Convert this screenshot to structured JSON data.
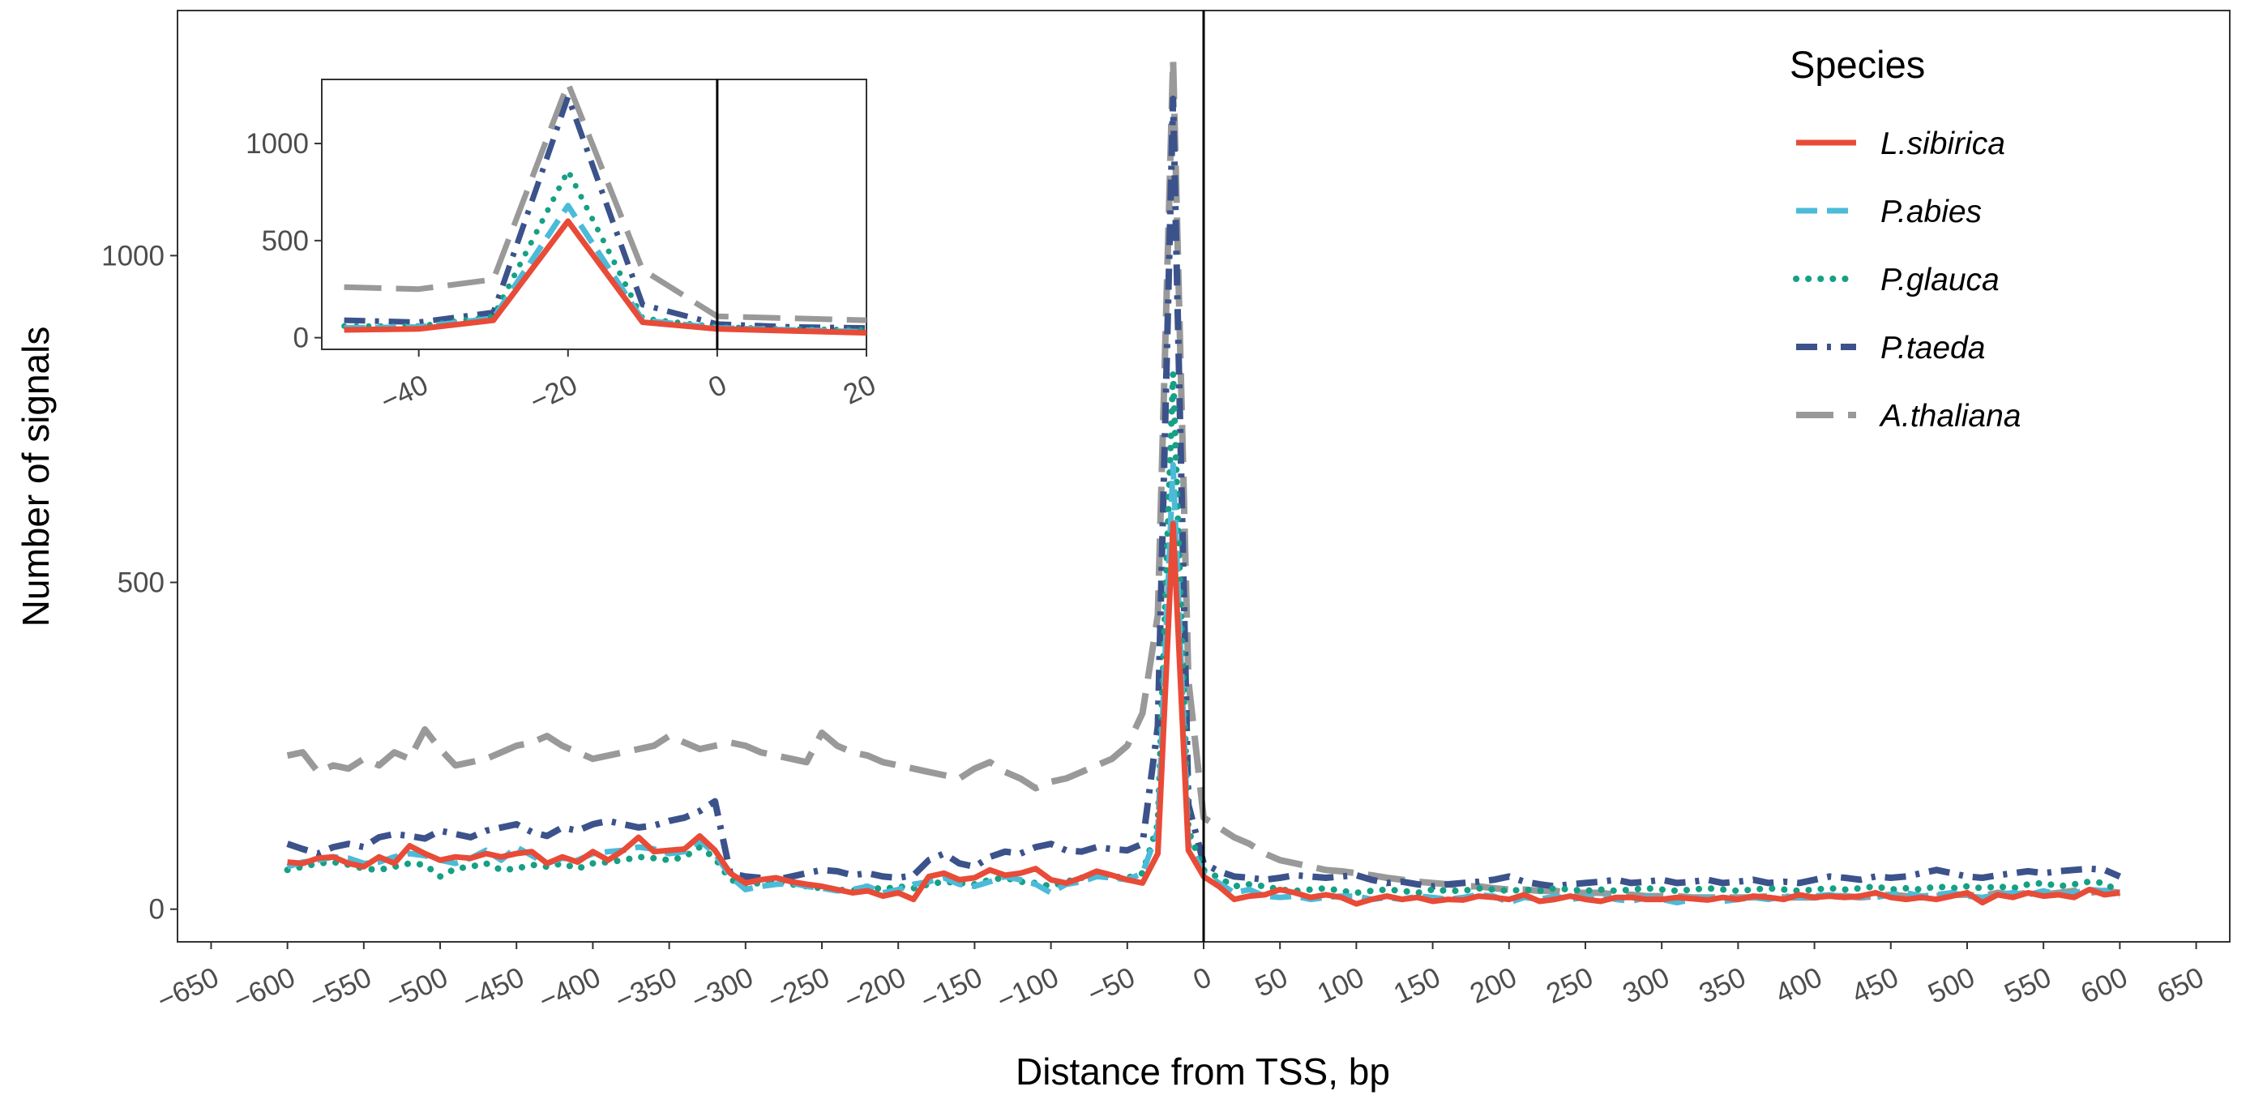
{
  "chart_data": [
    {
      "type": "line",
      "panel": "main",
      "xlabel": "Distance from TSS, bp",
      "ylabel": "Number of signals",
      "xlim": [
        -672,
        672
      ],
      "ylim": [
        -50,
        1375
      ],
      "xticks": [
        -650,
        -600,
        -550,
        -500,
        -450,
        -400,
        -350,
        -300,
        -250,
        -200,
        -150,
        -100,
        -50,
        0,
        50,
        100,
        150,
        200,
        250,
        300,
        350,
        400,
        450,
        500,
        550,
        600,
        650
      ],
      "xtick_labels": [
        "−650",
        "−600",
        "−550",
        "−500",
        "−450",
        "−400",
        "−350",
        "−300",
        "−250",
        "−200",
        "−150",
        "−100",
        "−50",
        "0",
        "50",
        "100",
        "150",
        "200",
        "250",
        "300",
        "350",
        "400",
        "450",
        "500",
        "550",
        "600",
        "650"
      ],
      "yticks": [
        0,
        500,
        1000
      ],
      "ytick_labels": [
        "0",
        "500",
        "1000"
      ],
      "vline": 0,
      "legend_title": "Species",
      "legend_position": "top-right",
      "x": [
        -600,
        -590,
        -580,
        -570,
        -560,
        -550,
        -540,
        -530,
        -520,
        -510,
        -500,
        -490,
        -480,
        -470,
        -460,
        -450,
        -440,
        -430,
        -420,
        -410,
        -400,
        -390,
        -380,
        -370,
        -360,
        -350,
        -340,
        -330,
        -320,
        -310,
        -300,
        -290,
        -280,
        -270,
        -260,
        -250,
        -240,
        -230,
        -220,
        -210,
        -200,
        -190,
        -180,
        -170,
        -160,
        -150,
        -140,
        -130,
        -120,
        -110,
        -100,
        -90,
        -80,
        -70,
        -60,
        -50,
        -40,
        -30,
        -20,
        -10,
        0,
        10,
        20,
        30,
        40,
        50,
        60,
        70,
        80,
        90,
        100,
        110,
        120,
        130,
        140,
        150,
        160,
        170,
        180,
        190,
        200,
        210,
        220,
        230,
        240,
        250,
        260,
        270,
        280,
        290,
        300,
        310,
        320,
        330,
        340,
        350,
        360,
        370,
        380,
        390,
        400,
        410,
        420,
        430,
        440,
        450,
        460,
        470,
        480,
        490,
        500,
        510,
        520,
        530,
        540,
        550,
        560,
        570,
        580,
        590,
        600
      ],
      "series": [
        {
          "name": "L.sibirica",
          "color": "#e84b37",
          "style": "solid",
          "values": [
            72,
            70,
            78,
            80,
            70,
            65,
            80,
            70,
            97,
            85,
            75,
            80,
            78,
            85,
            80,
            85,
            88,
            70,
            80,
            72,
            88,
            75,
            90,
            110,
            88,
            90,
            92,
            112,
            90,
            55,
            40,
            45,
            48,
            42,
            38,
            35,
            30,
            25,
            28,
            20,
            25,
            15,
            50,
            55,
            45,
            48,
            60,
            52,
            55,
            62,
            45,
            40,
            48,
            58,
            52,
            45,
            40,
            85,
            590,
            90,
            50,
            35,
            15,
            20,
            22,
            30,
            25,
            18,
            22,
            18,
            8,
            15,
            20,
            15,
            18,
            12,
            15,
            14,
            20,
            18,
            15,
            22,
            12,
            15,
            20,
            15,
            12,
            18,
            18,
            15,
            15,
            18,
            16,
            14,
            18,
            15,
            20,
            18,
            15,
            22,
            18,
            20,
            18,
            20,
            25,
            18,
            15,
            18,
            15,
            20,
            25,
            10,
            22,
            18,
            25,
            20,
            22,
            18,
            30,
            22,
            25
          ]
        },
        {
          "name": "P.abies",
          "color": "#4bbbd8",
          "style": "dashed",
          "values": [
            65,
            72,
            75,
            80,
            78,
            70,
            72,
            80,
            85,
            82,
            75,
            70,
            78,
            90,
            75,
            95,
            82,
            70,
            78,
            75,
            85,
            88,
            90,
            95,
            92,
            85,
            88,
            105,
            85,
            50,
            30,
            35,
            38,
            40,
            35,
            32,
            28,
            30,
            35,
            25,
            30,
            38,
            42,
            48,
            38,
            35,
            42,
            50,
            45,
            38,
            25,
            38,
            42,
            50,
            48,
            45,
            55,
            120,
            680,
            100,
            55,
            40,
            25,
            30,
            20,
            18,
            20,
            15,
            18,
            20,
            20,
            15,
            18,
            15,
            20,
            18,
            15,
            18,
            22,
            20,
            10,
            18,
            15,
            20,
            15,
            18,
            20,
            15,
            12,
            18,
            15,
            10,
            15,
            18,
            12,
            15,
            18,
            15,
            20,
            18,
            20,
            22,
            18,
            20,
            18,
            22,
            25,
            20,
            22,
            25,
            20,
            18,
            22,
            25,
            22,
            28,
            22,
            25,
            30,
            28,
            20
          ]
        },
        {
          "name": "P.glauca",
          "color": "#16a085",
          "style": "dotted",
          "values": [
            60,
            65,
            70,
            72,
            68,
            62,
            60,
            65,
            70,
            68,
            50,
            62,
            65,
            70,
            60,
            62,
            68,
            65,
            70,
            62,
            70,
            72,
            75,
            80,
            78,
            75,
            80,
            95,
            78,
            45,
            38,
            40,
            42,
            38,
            35,
            32,
            30,
            28,
            35,
            30,
            35,
            32,
            38,
            42,
            40,
            38,
            45,
            48,
            42,
            40,
            35,
            42,
            48,
            52,
            50,
            48,
            55,
            130,
            820,
            120,
            60,
            48,
            35,
            38,
            35,
            30,
            28,
            30,
            32,
            28,
            25,
            28,
            30,
            28,
            25,
            30,
            28,
            28,
            32,
            30,
            28,
            30,
            28,
            32,
            30,
            28,
            30,
            28,
            30,
            32,
            30,
            28,
            30,
            32,
            30,
            28,
            30,
            32,
            30,
            28,
            30,
            32,
            30,
            32,
            35,
            30,
            32,
            30,
            35,
            32,
            35,
            32,
            35,
            32,
            38,
            40,
            35,
            38,
            42,
            40,
            25
          ]
        },
        {
          "name": "P.taeda",
          "color": "#3b528b",
          "style": "dashdot",
          "values": [
            100,
            92,
            85,
            95,
            100,
            95,
            110,
            115,
            112,
            108,
            120,
            115,
            110,
            120,
            125,
            130,
            118,
            112,
            125,
            120,
            130,
            135,
            130,
            125,
            128,
            135,
            140,
            150,
            165,
            55,
            50,
            48,
            45,
            50,
            55,
            60,
            58,
            52,
            55,
            50,
            48,
            52,
            75,
            85,
            70,
            65,
            80,
            88,
            85,
            95,
            100,
            90,
            88,
            95,
            92,
            90,
            100,
            280,
            1240,
            160,
            70,
            58,
            50,
            48,
            45,
            48,
            52,
            50,
            48,
            50,
            52,
            45,
            40,
            42,
            38,
            35,
            38,
            40,
            42,
            45,
            50,
            42,
            38,
            35,
            38,
            40,
            42,
            45,
            40,
            42,
            45,
            40,
            42,
            45,
            40,
            42,
            45,
            40,
            42,
            40,
            45,
            50,
            48,
            45,
            50,
            48,
            50,
            55,
            60,
            55,
            50,
            48,
            52,
            55,
            58,
            55,
            58,
            60,
            62,
            60,
            50
          ]
        },
        {
          "name": "A.thaliana",
          "color": "#999999",
          "style": "longdash",
          "values": [
            235,
            240,
            210,
            220,
            215,
            230,
            220,
            240,
            230,
            275,
            245,
            220,
            225,
            230,
            240,
            250,
            255,
            265,
            250,
            240,
            230,
            235,
            240,
            245,
            250,
            265,
            255,
            245,
            250,
            255,
            250,
            240,
            235,
            230,
            225,
            270,
            250,
            240,
            235,
            225,
            220,
            215,
            210,
            205,
            200,
            215,
            225,
            210,
            200,
            185,
            195,
            200,
            210,
            220,
            230,
            250,
            300,
            450,
            1300,
            350,
            140,
            125,
            110,
            100,
            85,
            75,
            70,
            65,
            60,
            58,
            55,
            52,
            48,
            45,
            42,
            40,
            38,
            35,
            35,
            32,
            30,
            30,
            28,
            28,
            25,
            25,
            25,
            22,
            22,
            20,
            20,
            20,
            18,
            18,
            18,
            18,
            18,
            20,
            18,
            18,
            18,
            20,
            20,
            18,
            20,
            22,
            20,
            18,
            20,
            22,
            22,
            20,
            25,
            22,
            25,
            22,
            25,
            28,
            25,
            28,
            25
          ]
        }
      ]
    },
    {
      "type": "line",
      "panel": "inset",
      "xlim": [
        -53,
        20
      ],
      "ylim": [
        -60,
        1330
      ],
      "xticks": [
        -40,
        -20,
        0,
        20
      ],
      "xtick_labels": [
        "−40",
        "−20",
        "0",
        "20"
      ],
      "yticks": [
        0,
        500,
        1000
      ],
      "ytick_labels": [
        "0",
        "500",
        "1000"
      ],
      "vline": 0,
      "x": [
        -50,
        -40,
        -30,
        -20,
        -10,
        0,
        10,
        20
      ],
      "series": [
        {
          "name": "L.sibirica",
          "color": "#e84b37",
          "style": "solid",
          "values": [
            40,
            45,
            90,
            600,
            80,
            45,
            35,
            25
          ]
        },
        {
          "name": "P.abies",
          "color": "#4bbbd8",
          "style": "dashed",
          "values": [
            50,
            55,
            100,
            680,
            90,
            50,
            40,
            30
          ]
        },
        {
          "name": "P.glauca",
          "color": "#16a085",
          "style": "dotted",
          "values": [
            60,
            60,
            110,
            860,
            100,
            55,
            45,
            40
          ]
        },
        {
          "name": "P.taeda",
          "color": "#3b528b",
          "style": "dashdot",
          "values": [
            90,
            80,
            130,
            1240,
            170,
            70,
            55,
            50
          ]
        },
        {
          "name": "A.thaliana",
          "color": "#999999",
          "style": "longdash",
          "values": [
            260,
            250,
            300,
            1310,
            350,
            110,
            100,
            90
          ]
        }
      ]
    }
  ]
}
